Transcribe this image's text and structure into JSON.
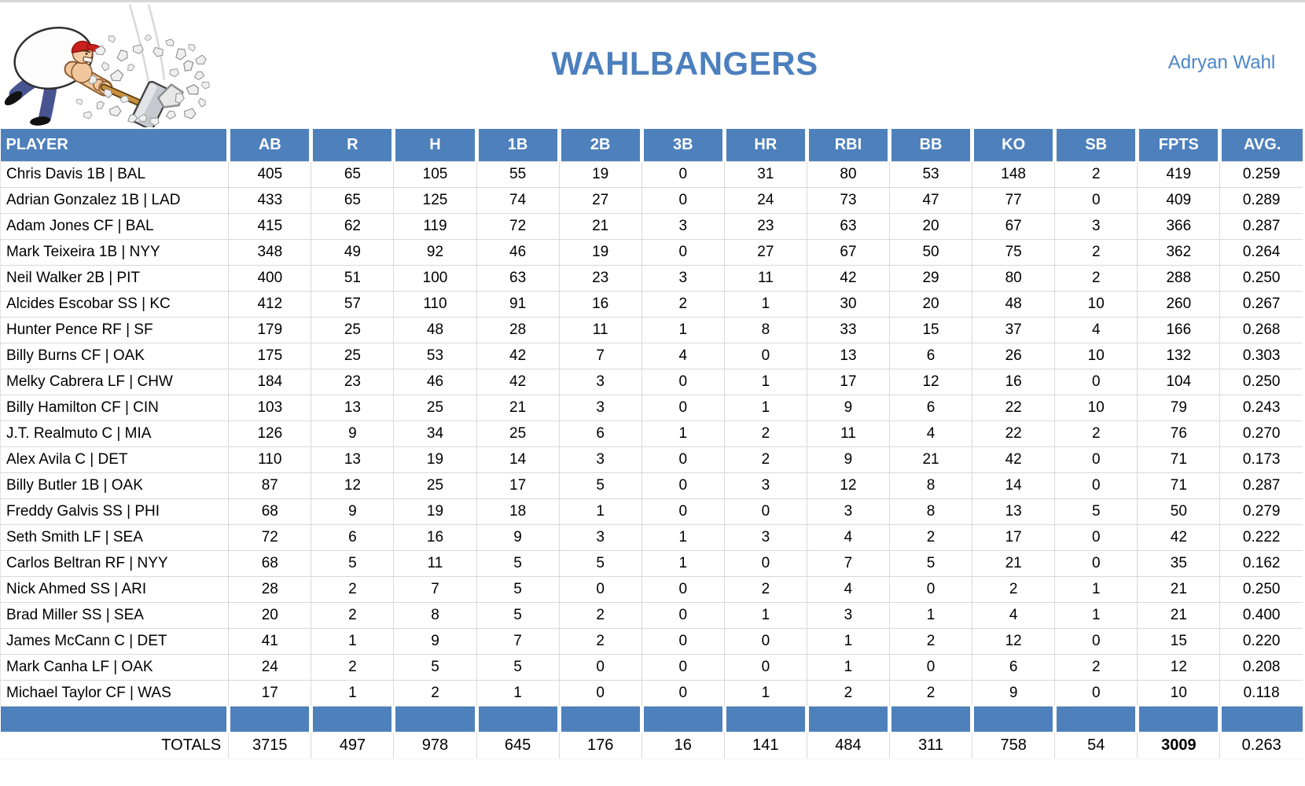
{
  "header": {
    "team_name": "WAHLBANGERS",
    "owner": "Adryan Wahl",
    "logo_icon": "man-smashing-rocks-with-hammer-icon"
  },
  "colors": {
    "accent_blue": "#4e80bc",
    "title_blue": "#4c7fbe",
    "owner_blue": "#4d87c7",
    "grid_gray": "#d9d9d9"
  },
  "table": {
    "columns": [
      "PLAYER",
      "AB",
      "R",
      "H",
      "1B",
      "2B",
      "3B",
      "HR",
      "RBI",
      "BB",
      "KO",
      "SB",
      "FPTS",
      "AVG."
    ],
    "players": [
      {
        "name": "Chris Davis 1B | BAL",
        "stats": [
          405,
          65,
          105,
          55,
          19,
          0,
          31,
          80,
          53,
          148,
          2,
          419,
          "0.259"
        ]
      },
      {
        "name": "Adrian Gonzalez 1B | LAD",
        "stats": [
          433,
          65,
          125,
          74,
          27,
          0,
          24,
          73,
          47,
          77,
          0,
          409,
          "0.289"
        ]
      },
      {
        "name": "Adam Jones CF | BAL",
        "stats": [
          415,
          62,
          119,
          72,
          21,
          3,
          23,
          63,
          20,
          67,
          3,
          366,
          "0.287"
        ]
      },
      {
        "name": "Mark Teixeira 1B | NYY",
        "stats": [
          348,
          49,
          92,
          46,
          19,
          0,
          27,
          67,
          50,
          75,
          2,
          362,
          "0.264"
        ]
      },
      {
        "name": "Neil Walker 2B | PIT",
        "stats": [
          400,
          51,
          100,
          63,
          23,
          3,
          11,
          42,
          29,
          80,
          2,
          288,
          "0.250"
        ]
      },
      {
        "name": "Alcides Escobar SS | KC",
        "stats": [
          412,
          57,
          110,
          91,
          16,
          2,
          1,
          30,
          20,
          48,
          10,
          260,
          "0.267"
        ]
      },
      {
        "name": "Hunter Pence RF | SF",
        "stats": [
          179,
          25,
          48,
          28,
          11,
          1,
          8,
          33,
          15,
          37,
          4,
          166,
          "0.268"
        ]
      },
      {
        "name": "Billy Burns CF | OAK",
        "stats": [
          175,
          25,
          53,
          42,
          7,
          4,
          0,
          13,
          6,
          26,
          10,
          132,
          "0.303"
        ]
      },
      {
        "name": "Melky Cabrera LF | CHW",
        "stats": [
          184,
          23,
          46,
          42,
          3,
          0,
          1,
          17,
          12,
          16,
          0,
          104,
          "0.250"
        ]
      },
      {
        "name": "Billy Hamilton CF | CIN",
        "stats": [
          103,
          13,
          25,
          21,
          3,
          0,
          1,
          9,
          6,
          22,
          10,
          79,
          "0.243"
        ]
      },
      {
        "name": "J.T. Realmuto C | MIA",
        "stats": [
          126,
          9,
          34,
          25,
          6,
          1,
          2,
          11,
          4,
          22,
          2,
          76,
          "0.270"
        ]
      },
      {
        "name": "Alex Avila C | DET",
        "stats": [
          110,
          13,
          19,
          14,
          3,
          0,
          2,
          9,
          21,
          42,
          0,
          71,
          "0.173"
        ]
      },
      {
        "name": "Billy Butler 1B | OAK",
        "stats": [
          87,
          12,
          25,
          17,
          5,
          0,
          3,
          12,
          8,
          14,
          0,
          71,
          "0.287"
        ]
      },
      {
        "name": "Freddy Galvis SS | PHI",
        "stats": [
          68,
          9,
          19,
          18,
          1,
          0,
          0,
          3,
          8,
          13,
          5,
          50,
          "0.279"
        ]
      },
      {
        "name": "Seth Smith LF | SEA",
        "stats": [
          72,
          6,
          16,
          9,
          3,
          1,
          3,
          4,
          2,
          17,
          0,
          42,
          "0.222"
        ]
      },
      {
        "name": "Carlos Beltran RF | NYY",
        "stats": [
          68,
          5,
          11,
          5,
          5,
          1,
          0,
          7,
          5,
          21,
          0,
          35,
          "0.162"
        ]
      },
      {
        "name": "Nick Ahmed SS | ARI",
        "stats": [
          28,
          2,
          7,
          5,
          0,
          0,
          2,
          4,
          0,
          2,
          1,
          21,
          "0.250"
        ]
      },
      {
        "name": "Brad Miller SS | SEA",
        "stats": [
          20,
          2,
          8,
          5,
          2,
          0,
          1,
          3,
          1,
          4,
          1,
          21,
          "0.400"
        ]
      },
      {
        "name": "James McCann C | DET",
        "stats": [
          41,
          1,
          9,
          7,
          2,
          0,
          0,
          1,
          2,
          12,
          0,
          15,
          "0.220"
        ]
      },
      {
        "name": "Mark Canha LF | OAK",
        "stats": [
          24,
          2,
          5,
          5,
          0,
          0,
          0,
          1,
          0,
          6,
          2,
          12,
          "0.208"
        ]
      },
      {
        "name": "Michael Taylor CF | WAS",
        "stats": [
          17,
          1,
          2,
          1,
          0,
          0,
          1,
          2,
          2,
          9,
          0,
          10,
          "0.118"
        ]
      }
    ],
    "totals_label": "TOTALS",
    "totals": [
      3715,
      497,
      978,
      645,
      176,
      16,
      141,
      484,
      311,
      758,
      54,
      3009,
      "0.263"
    ]
  }
}
